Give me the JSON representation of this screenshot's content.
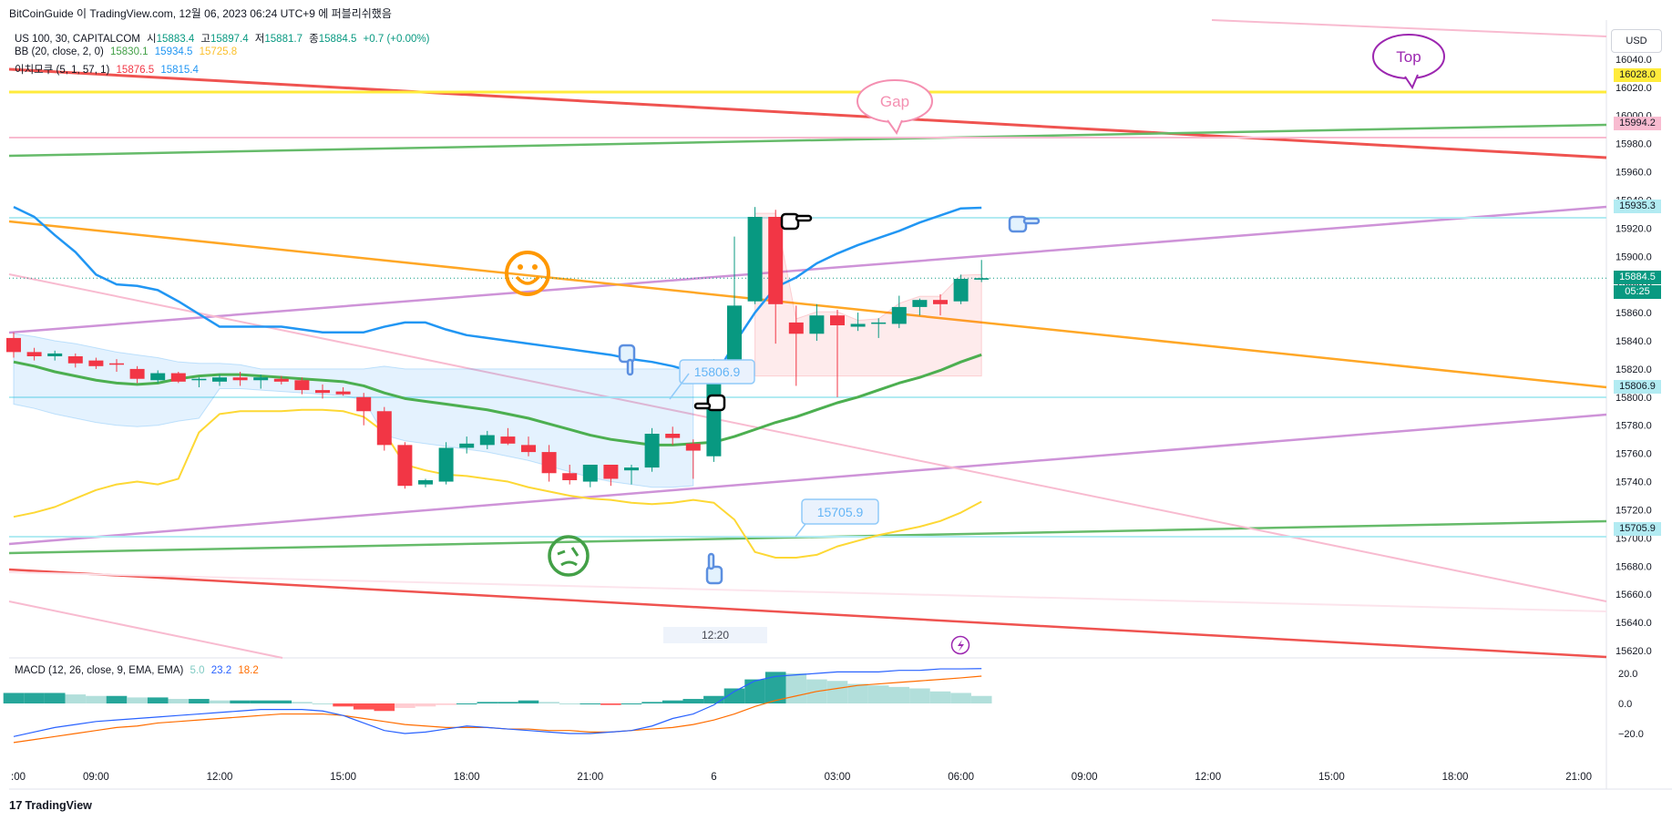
{
  "header": {
    "caption": "BitCoinGuide 이 TradingView.com, 12월 06, 2023 06:24 UTC+9 에 퍼블리쉬했음",
    "symbol_line": {
      "symbol": "US 100, 30, CAPITALCOM",
      "open_label": "시",
      "open": "15883.4",
      "high_label": "고",
      "high": "15897.4",
      "low_label": "저",
      "low": "15881.7",
      "close_label": "종",
      "close": "15884.5",
      "change": "+0.7 (+0.00%)"
    },
    "bb_line": {
      "name": "BB (20, close, 2, 0)",
      "v1": "15830.1",
      "v2": "15934.5",
      "v3": "15725.8"
    },
    "ichimoku_line": {
      "name": "이치모쿠 (5, 1, 57, 1)",
      "v1": "15876.5",
      "v2": "15815.4"
    },
    "macd_line": {
      "name": "MACD (12, 26, close, 9, EMA, EMA)",
      "v1": "5.0",
      "v2": "23.2",
      "v3": "18.2"
    }
  },
  "currency_button": "USD",
  "footer": {
    "logo_text": "TradingView",
    "logo_mark": "17"
  },
  "crosshair_time_label": "12:20",
  "colors": {
    "up": "#26a69a",
    "down": "#f23645",
    "bb_mid": "#4caf50",
    "bb_upper": "#2196f3",
    "bb_lower": "#ffeb3b",
    "red_line": "#ef5350",
    "green_line": "#66bb6a",
    "purple_line": "#ce93d8",
    "orange_line": "#ffa726",
    "pink_line": "#f8bbd0",
    "yellow_line": "#ffeb3b"
  },
  "chart_data": {
    "type": "candlestick",
    "symbol": "US 100",
    "timeframe": "30",
    "y_ticks": [
      "16040.0",
      "16020.0",
      "16000.0",
      "15980.0",
      "15960.0",
      "15940.0",
      "15920.0",
      "15900.0",
      "15880.0",
      "15860.0",
      "15840.0",
      "15820.0",
      "15800.0",
      "15780.0",
      "15760.0",
      "15740.0",
      "15720.0",
      "15700.0",
      "15680.0",
      "15660.0",
      "15640.0",
      "15620.0"
    ],
    "ylim": [
      15620,
      16060
    ],
    "x_ticks": [
      {
        "label": ":00",
        "i": 0
      },
      {
        "label": "09:00",
        "i": 4
      },
      {
        "label": "12:00",
        "i": 10
      },
      {
        "label": "15:00",
        "i": 16
      },
      {
        "label": "18:00",
        "i": 22
      },
      {
        "label": "21:00",
        "i": 28
      },
      {
        "label": "6",
        "i": 34
      },
      {
        "label": "03:00",
        "i": 40
      },
      {
        "label": "06:00",
        "i": 46
      },
      {
        "label": "09:00",
        "i": 52
      },
      {
        "label": "12:00",
        "i": 58
      },
      {
        "label": "15:00",
        "i": 64
      },
      {
        "label": "18:00",
        "i": 70
      },
      {
        "label": "21:00",
        "i": 76
      }
    ],
    "candles": [
      {
        "o": 15842,
        "h": 15846,
        "l": 15828,
        "c": 15832
      },
      {
        "o": 15832,
        "h": 15835,
        "l": 15826,
        "c": 15829
      },
      {
        "o": 15829,
        "h": 15833,
        "l": 15826,
        "c": 15831
      },
      {
        "o": 15829,
        "h": 15831,
        "l": 15821,
        "c": 15824
      },
      {
        "o": 15826,
        "h": 15828,
        "l": 15820,
        "c": 15822
      },
      {
        "o": 15824,
        "h": 15827,
        "l": 15818,
        "c": 15823
      },
      {
        "o": 15820,
        "h": 15822,
        "l": 15810,
        "c": 15813
      },
      {
        "o": 15812,
        "h": 15819,
        "l": 15810,
        "c": 15817
      },
      {
        "o": 15817,
        "h": 15818,
        "l": 15810,
        "c": 15811
      },
      {
        "o": 15812,
        "h": 15814,
        "l": 15807,
        "c": 15813
      },
      {
        "o": 15811,
        "h": 15816,
        "l": 15808,
        "c": 15814
      },
      {
        "o": 15814,
        "h": 15818,
        "l": 15808,
        "c": 15812
      },
      {
        "o": 15812,
        "h": 15816,
        "l": 15806,
        "c": 15814
      },
      {
        "o": 15813,
        "h": 15815,
        "l": 15809,
        "c": 15811
      },
      {
        "o": 15812,
        "h": 15814,
        "l": 15802,
        "c": 15805
      },
      {
        "o": 15805,
        "h": 15809,
        "l": 15799,
        "c": 15803
      },
      {
        "o": 15804,
        "h": 15807,
        "l": 15801,
        "c": 15802
      },
      {
        "o": 15800,
        "h": 15803,
        "l": 15780,
        "c": 15790
      },
      {
        "o": 15790,
        "h": 15793,
        "l": 15762,
        "c": 15766
      },
      {
        "o": 15766,
        "h": 15768,
        "l": 15735,
        "c": 15737
      },
      {
        "o": 15738,
        "h": 15742,
        "l": 15736,
        "c": 15741
      },
      {
        "o": 15740,
        "h": 15768,
        "l": 15738,
        "c": 15764
      },
      {
        "o": 15764,
        "h": 15772,
        "l": 15760,
        "c": 15767
      },
      {
        "o": 15766,
        "h": 15776,
        "l": 15763,
        "c": 15773
      },
      {
        "o": 15772,
        "h": 15778,
        "l": 15766,
        "c": 15767
      },
      {
        "o": 15766,
        "h": 15772,
        "l": 15758,
        "c": 15761
      },
      {
        "o": 15761,
        "h": 15766,
        "l": 15740,
        "c": 15746
      },
      {
        "o": 15746,
        "h": 15752,
        "l": 15738,
        "c": 15741
      },
      {
        "o": 15740,
        "h": 15752,
        "l": 15736,
        "c": 15752
      },
      {
        "o": 15752,
        "h": 15752,
        "l": 15737,
        "c": 15742
      },
      {
        "o": 15748,
        "h": 15752,
        "l": 15738,
        "c": 15750
      },
      {
        "o": 15750,
        "h": 15778,
        "l": 15747,
        "c": 15774
      },
      {
        "o": 15774,
        "h": 15779,
        "l": 15766,
        "c": 15771
      },
      {
        "o": 15767,
        "h": 15770,
        "l": 15742,
        "c": 15762
      },
      {
        "o": 15758,
        "h": 15827,
        "l": 15754,
        "c": 15825
      },
      {
        "o": 15825,
        "h": 15914,
        "l": 15822,
        "c": 15865
      },
      {
        "o": 15868,
        "h": 15935,
        "l": 15866,
        "c": 15928
      },
      {
        "o": 15928,
        "h": 15933,
        "l": 15838,
        "c": 15866
      },
      {
        "o": 15853,
        "h": 15865,
        "l": 15808,
        "c": 15845
      },
      {
        "o": 15845,
        "h": 15866,
        "l": 15840,
        "c": 15858
      },
      {
        "o": 15858,
        "h": 15862,
        "l": 15800,
        "c": 15851
      },
      {
        "o": 15850,
        "h": 15860,
        "l": 15847,
        "c": 15852
      },
      {
        "o": 15852,
        "h": 15856,
        "l": 15842,
        "c": 15853
      },
      {
        "o": 15852,
        "h": 15872,
        "l": 15849,
        "c": 15864
      },
      {
        "o": 15864,
        "h": 15870,
        "l": 15858,
        "c": 15869
      },
      {
        "o": 15869,
        "h": 15873,
        "l": 15858,
        "c": 15866
      },
      {
        "o": 15868,
        "h": 15887,
        "l": 15866,
        "c": 15884
      },
      {
        "o": 15883.4,
        "h": 15897.4,
        "l": 15881.7,
        "c": 15884.5
      }
    ],
    "bb_upper": [
      15935,
      15928,
      15915,
      15903,
      15887,
      15880,
      15879,
      15876,
      15868,
      15859,
      15850,
      15850,
      15850,
      15850,
      15848,
      15846,
      15846,
      15846,
      15850,
      15853,
      15853,
      15848,
      15844,
      15842,
      15840,
      15838,
      15836,
      15834,
      15832,
      15830,
      15827,
      15825,
      15822,
      15818,
      15813,
      15838,
      15860,
      15878,
      15885,
      15895,
      15902,
      15908,
      15913,
      15918,
      15924,
      15929,
      15934,
      15934.5
    ],
    "bb_mid": [
      15825,
      15822,
      15818,
      15815,
      15812,
      15810,
      15809,
      15810,
      15813,
      15815,
      15816,
      15816,
      15815,
      15814,
      15813,
      15812,
      15811,
      15808,
      15803,
      15799,
      15797,
      15795,
      15793,
      15791,
      15788,
      15785,
      15781,
      15777,
      15773,
      15770,
      15768,
      15766,
      15766,
      15767,
      15768,
      15772,
      15777,
      15782,
      15786,
      15791,
      15796,
      15800,
      15805,
      15810,
      15814,
      15819,
      15825,
      15830.1
    ],
    "bb_lower": [
      15715,
      15718,
      15722,
      15728,
      15734,
      15738,
      15740,
      15738,
      15742,
      15775,
      15788,
      15790,
      15790,
      15790,
      15791,
      15791,
      15790,
      15786,
      15775,
      15752,
      15748,
      15745,
      15744,
      15742,
      15740,
      15736,
      15733,
      15730,
      15728,
      15727,
      15725,
      15724,
      15725,
      15727,
      15725,
      15713,
      15690,
      15686,
      15686,
      15688,
      15694,
      15698,
      15702,
      15705,
      15708,
      15712,
      15718,
      15725.8
    ],
    "ichimoku_span_a": [
      15845,
      15843,
      15840,
      15838,
      15835,
      15832,
      15830,
      15828,
      15825,
      15824,
      15824,
      15823,
      15820,
      15820,
      15820,
      15820,
      15820,
      15820,
      15822,
      15820,
      15820,
      15820,
      15820,
      15820,
      15820,
      15820,
      15820,
      15820,
      15820,
      15820,
      15820,
      15820,
      15820,
      15820,
      15820,
      15820,
      15820,
      15820,
      15820,
      15820,
      15820,
      15820,
      15820,
      15820,
      15820,
      15820,
      15820,
      15876.5
    ],
    "macd": {
      "zero_axis": 0,
      "ticks": [
        "20.0",
        "0.0",
        "−20.0"
      ],
      "histogram": [
        7,
        7,
        7,
        6,
        5,
        5,
        4,
        4,
        3,
        3,
        2,
        2,
        2,
        2,
        1,
        0,
        -2,
        -4,
        -5,
        -3,
        -2,
        -1,
        0,
        1,
        1,
        2,
        1,
        0,
        0,
        -1,
        0,
        1,
        2,
        3,
        5,
        10,
        16,
        21,
        20,
        16,
        15,
        13,
        12,
        11,
        10,
        8,
        7,
        5
      ],
      "macd_line": [
        -22,
        -19,
        -16,
        -14,
        -12,
        -11,
        -10,
        -9,
        -8,
        -7,
        -6,
        -5,
        -4,
        -4,
        -4,
        -5,
        -8,
        -13,
        -18,
        -20,
        -19,
        -17,
        -15,
        -16,
        -17,
        -18,
        -19,
        -20,
        -20,
        -19,
        -18,
        -15,
        -10,
        -7,
        -1,
        8,
        15,
        18,
        19,
        20,
        21,
        21,
        21,
        22,
        22,
        23,
        23,
        23.2
      ],
      "signal_line": [
        -26,
        -24,
        -22,
        -20,
        -18,
        -16,
        -15,
        -13,
        -12,
        -11,
        -10,
        -9,
        -8,
        -7,
        -7,
        -7,
        -8,
        -10,
        -12,
        -14,
        -15,
        -16,
        -16,
        -16,
        -17,
        -17,
        -18,
        -18,
        -19,
        -19,
        -18,
        -17,
        -16,
        -14,
        -11,
        -7,
        -2,
        2,
        5,
        8,
        10,
        12,
        13,
        14,
        15,
        16,
        17,
        18.2
      ]
    }
  },
  "price_tags": [
    {
      "label": "16028.0",
      "bg": "#ffeb3b",
      "fg": "#131722",
      "value": 16028
    },
    {
      "label": "15994.2",
      "bg": "#f8bbd0",
      "fg": "#131722",
      "value": 15994.2
    },
    {
      "label": "15935.3",
      "bg": "#b2ebf2",
      "fg": "#131722",
      "value": 15935.3
    },
    {
      "label": "15884.5",
      "bg": "#089981",
      "fg": "#ffffff",
      "value": 15884.5
    },
    {
      "label": "05:25",
      "bg": "#089981",
      "fg": "#ffffff",
      "value": 15876
    },
    {
      "label": "15806.9",
      "bg": "#b2ebf2",
      "fg": "#131722",
      "value": 15806.9
    },
    {
      "label": "15705.9",
      "bg": "#b2ebf2",
      "fg": "#131722",
      "value": 15705.9
    }
  ],
  "annotations": {
    "top_bubble": "Top",
    "gap_bubble": "Gap",
    "price_label_1": "15806.9",
    "price_label_2": "15705.9",
    "lightning_icon": "lightning-icon",
    "smiley_icon": "smiley-icon",
    "dizzy_icon": "dizzy-face-icon",
    "pointer_icons": [
      "hand-point-right-icon",
      "hand-point-right-icon",
      "hand-point-down-icon",
      "hand-point-left-icon",
      "hand-point-up-icon"
    ]
  }
}
